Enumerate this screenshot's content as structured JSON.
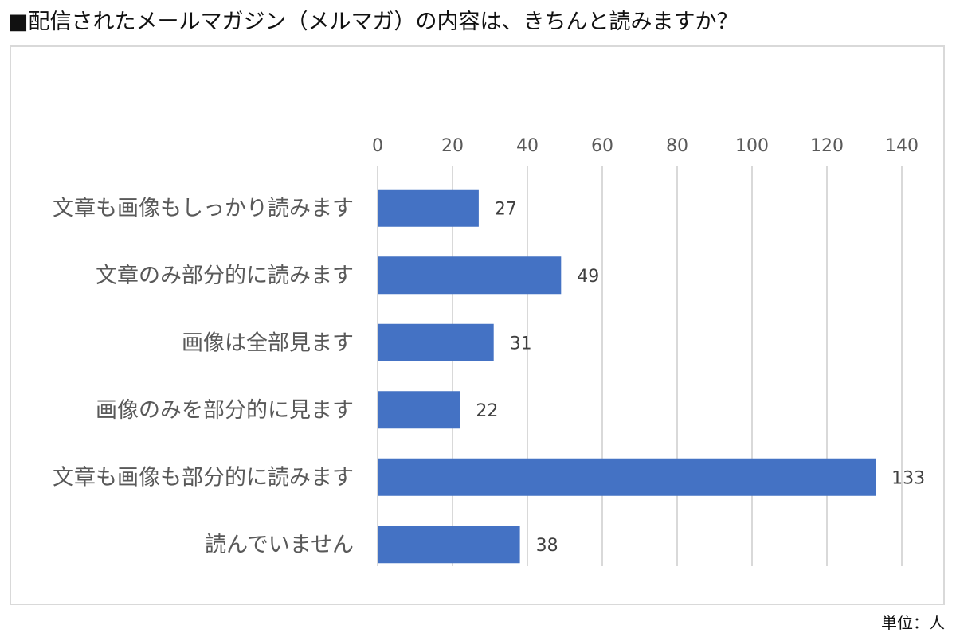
{
  "title": "■配信されたメールマガジン（メルマガ）の内容は、きちんと読みますか？",
  "unit_label": "単位：人",
  "colors": {
    "bar": "#4472c4",
    "grid": "#d9d9d9",
    "text": "#595959",
    "value_text": "#404040"
  },
  "chart_data": {
    "type": "bar",
    "orientation": "horizontal",
    "title": "■配信されたメールマガジン（メルマガ）の内容は、きちんと読みますか？",
    "xlabel": "",
    "ylabel": "",
    "xlim": [
      0,
      140
    ],
    "ticks": [
      0,
      20,
      40,
      60,
      80,
      100,
      120,
      140
    ],
    "axis_position": "top",
    "grid": true,
    "categories": [
      "文章も画像もしっかり読みます",
      "文章のみ部分的に読みます",
      "画像は全部見ます",
      "画像のみを部分的に見ます",
      "文章も画像も部分的に読みます",
      "読んでいません"
    ],
    "values": [
      27,
      49,
      31,
      22,
      133,
      38
    ]
  }
}
